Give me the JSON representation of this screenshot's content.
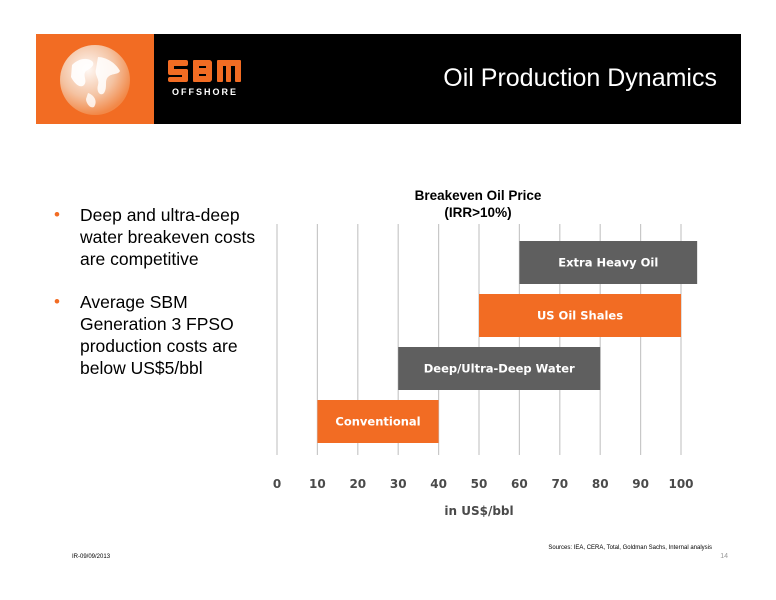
{
  "header": {
    "title": "Oil Production Dynamics",
    "logo_text": "SBM",
    "logo_subtext": "OFFSHORE"
  },
  "bullets": [
    "Deep and ultra-deep water breakeven costs are competitive",
    "Average SBM Generation 3 FPSO production costs are below US$5/bbl"
  ],
  "chart_title_line1": "Breakeven Oil Price",
  "chart_title_line2": "(IRR>10%)",
  "chart_data": {
    "type": "bar",
    "orientation": "horizontal-floating",
    "title": "Breakeven Oil Price (IRR>10%)",
    "xlabel": "in US$/bbl",
    "ylabel": "",
    "xlim": [
      0,
      100
    ],
    "ticks": [
      0,
      10,
      20,
      30,
      40,
      50,
      60,
      70,
      80,
      90,
      100
    ],
    "grid": true,
    "bars": [
      {
        "label": "Conventional",
        "start": 10,
        "end": 40,
        "color": "#f26c23"
      },
      {
        "label": "Deep/Ultra-Deep Water",
        "start": 30,
        "end": 80,
        "color": "#5f5f5f"
      },
      {
        "label": "US Oil Shales",
        "start": 50,
        "end": 100,
        "color": "#f26c23"
      },
      {
        "label": "Extra Heavy Oil",
        "start": 60,
        "end": 104,
        "color": "#5f5f5f"
      }
    ]
  },
  "colors": {
    "accent": "#f26c23",
    "dark": "#000000",
    "bar_gray": "#5f5f5f",
    "grid": "#c8c8c8"
  },
  "footer": {
    "sources": "Sources: IEA, CERA, Total, Goldman Sachs, Internal analysis",
    "code": "IR-09/09/2013",
    "page": "14"
  }
}
